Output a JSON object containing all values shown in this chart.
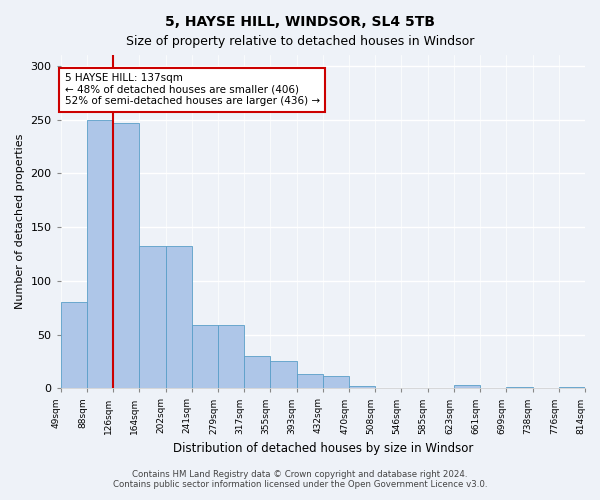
{
  "title": "5, HAYSE HILL, WINDSOR, SL4 5TB",
  "subtitle": "Size of property relative to detached houses in Windsor",
  "xlabel": "Distribution of detached houses by size in Windsor",
  "ylabel": "Number of detached properties",
  "bar_values": [
    80,
    250,
    247,
    132,
    132,
    59,
    59,
    30,
    25,
    13,
    11,
    2,
    0,
    0,
    0,
    3,
    0,
    1,
    0,
    1
  ],
  "categories": [
    "49sqm",
    "88sqm",
    "126sqm",
    "164sqm",
    "202sqm",
    "241sqm",
    "279sqm",
    "317sqm",
    "355sqm",
    "393sqm",
    "432sqm",
    "470sqm",
    "508sqm",
    "546sqm",
    "585sqm",
    "623sqm",
    "661sqm",
    "699sqm",
    "738sqm",
    "776sqm",
    "814sqm"
  ],
  "bar_color": "#aec6e8",
  "bar_edge_color": "#5a9fc8",
  "red_line_x": 2,
  "annotation_title": "5 HAYSE HILL: 137sqm",
  "annotation_line1": "← 48% of detached houses are smaller (406)",
  "annotation_line2": "52% of semi-detached houses are larger (436) →",
  "annotation_box_color": "#cc0000",
  "ylim": [
    0,
    310
  ],
  "yticks": [
    0,
    50,
    100,
    150,
    200,
    250,
    300
  ],
  "footer1": "Contains HM Land Registry data © Crown copyright and database right 2024.",
  "footer2": "Contains public sector information licensed under the Open Government Licence v3.0.",
  "bg_color": "#eef2f8",
  "plot_bg_color": "#eef2f8"
}
